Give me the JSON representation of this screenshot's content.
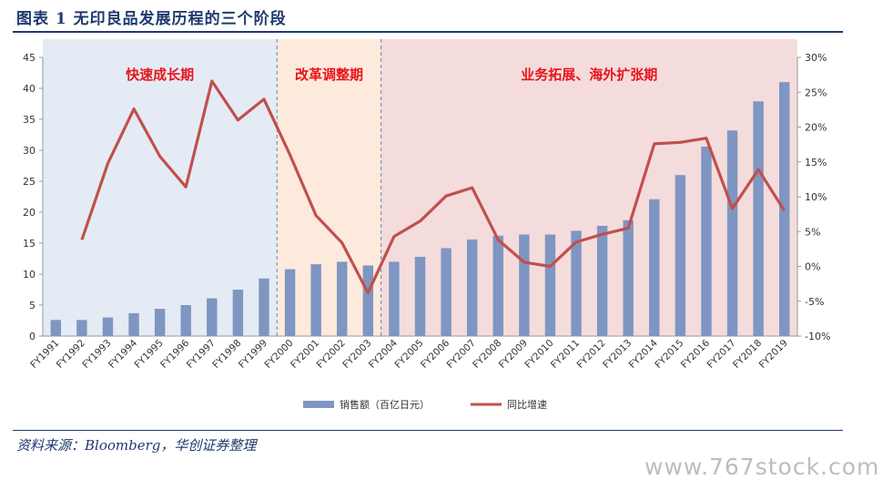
{
  "header": {
    "title": "图表 1    无印良品发展历程的三个阶段"
  },
  "footer": {
    "source": "资料来源：Bloomberg，华创证券整理",
    "watermark": "www.767stock.com"
  },
  "chart_data": {
    "type": "bar",
    "categories": [
      "FY1991",
      "FY1992",
      "FY1993",
      "FY1994",
      "FY1995",
      "FY1996",
      "FY1997",
      "FY1998",
      "FY1999",
      "FY2000",
      "FY2001",
      "FY2002",
      "FY2003",
      "FY2004",
      "FY2005",
      "FY2006",
      "FY2007",
      "FY2008",
      "FY2009",
      "FY2010",
      "FY2011",
      "FY2012",
      "FY2013",
      "FY2014",
      "FY2015",
      "FY2016",
      "FY2017",
      "FY2018",
      "FY2019"
    ],
    "series": [
      {
        "name": "销售额（百亿日元）",
        "type": "bar",
        "axis": "left",
        "color": "#7f96c2",
        "values": [
          2.6,
          2.6,
          3.0,
          3.7,
          4.4,
          5.0,
          6.1,
          7.5,
          9.3,
          10.8,
          11.6,
          12.0,
          11.4,
          12.0,
          12.8,
          14.2,
          15.6,
          16.2,
          16.4,
          16.4,
          17.0,
          17.8,
          18.7,
          22.1,
          26.0,
          30.6,
          33.2,
          37.9,
          41.0
        ]
      },
      {
        "name": "同比增速",
        "type": "line",
        "axis": "right",
        "color": "#c0504d",
        "values": [
          null,
          3.8,
          14.8,
          22.6,
          15.8,
          11.4,
          26.6,
          21.0,
          24.0,
          16.0,
          7.3,
          3.4,
          -3.8,
          4.3,
          6.5,
          10.1,
          11.3,
          3.8,
          0.6,
          0.0,
          3.5,
          4.6,
          5.5,
          17.6,
          17.8,
          18.4,
          8.3,
          13.9,
          8.0
        ]
      }
    ],
    "y_left": {
      "min": 0,
      "max": 45,
      "step": 5,
      "tick_labels": [
        "0",
        "5",
        "10",
        "15",
        "20",
        "25",
        "30",
        "35",
        "40",
        "45"
      ]
    },
    "y_right": {
      "min": -10,
      "max": 30,
      "step": 5,
      "tick_labels": [
        "-10%",
        "-5%",
        "0%",
        "5%",
        "10%",
        "15%",
        "20%",
        "25%",
        "30%"
      ]
    },
    "phases": [
      {
        "label": "快速成长期",
        "from": "FY1991",
        "to": "FY1999",
        "color": "#e4ebf5"
      },
      {
        "label": "改革调整期",
        "from": "FY2000",
        "to": "FY2003",
        "color": "#fdeadd"
      },
      {
        "label": "业务拓展、海外扩张期",
        "from": "FY2004",
        "to": "FY2019",
        "color": "#f4dcdc"
      }
    ],
    "legend_position": "bottom",
    "grid": false
  }
}
